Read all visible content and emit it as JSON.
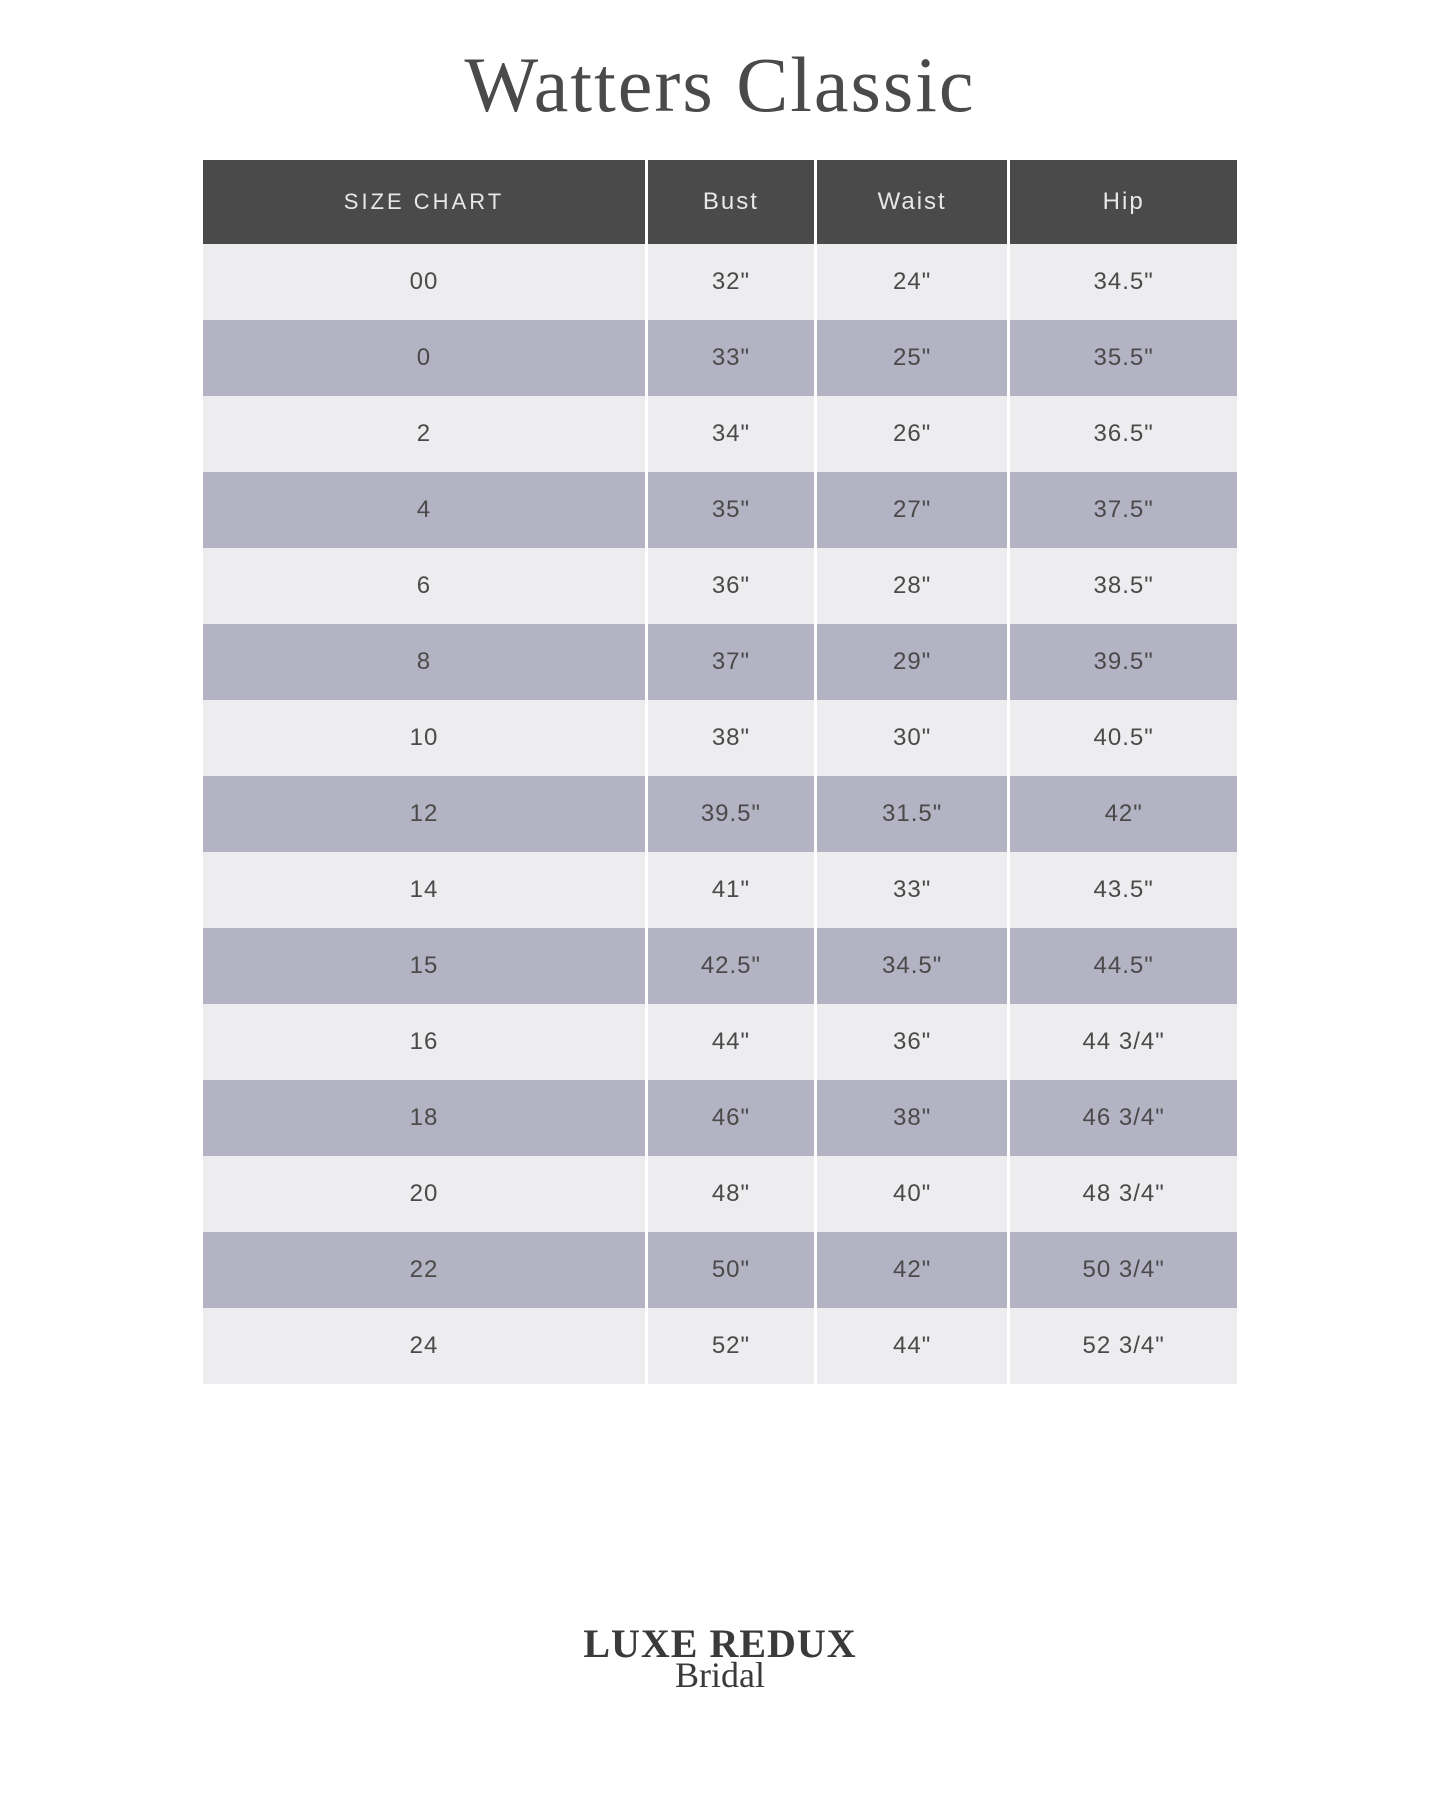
{
  "title": "Watters Classic",
  "footer": {
    "main": "LUXE REDUX",
    "sub": "Bridal"
  },
  "table": {
    "type": "table",
    "columns": [
      "SIZE CHART",
      "Bust",
      "Waist",
      "Hip"
    ],
    "header_bg": "#4a4a4a",
    "header_text_color": "#e8e8e8",
    "row_light_bg": "#ededf0",
    "row_dark_bg": "#b4b3c4",
    "cell_text_color": "#4a4a4a",
    "cell_fontsize": 24,
    "header_fontsize": 24,
    "rows": [
      [
        "00",
        "32\"",
        "24\"",
        "34.5\""
      ],
      [
        "0",
        "33\"",
        "25\"",
        "35.5\""
      ],
      [
        "2",
        "34\"",
        "26\"",
        "36.5\""
      ],
      [
        "4",
        "35\"",
        "27\"",
        "37.5\""
      ],
      [
        "6",
        "36\"",
        "28\"",
        "38.5\""
      ],
      [
        "8",
        "37\"",
        "29\"",
        "39.5\""
      ],
      [
        "10",
        "38\"",
        "30\"",
        "40.5\""
      ],
      [
        "12",
        "39.5\"",
        "31.5\"",
        "42\""
      ],
      [
        "14",
        "41\"",
        "33\"",
        "43.5\""
      ],
      [
        "15",
        "42.5\"",
        "34.5\"",
        "44.5\""
      ],
      [
        "16",
        "44\"",
        "36\"",
        "44 3/4\""
      ],
      [
        "18",
        "46\"",
        "38\"",
        "46 3/4\""
      ],
      [
        "20",
        "48\"",
        "40\"",
        "48 3/4\""
      ],
      [
        "22",
        "50\"",
        "42\"",
        "50 3/4\""
      ],
      [
        "24",
        "52\"",
        "44\"",
        "52 3/4\""
      ]
    ]
  }
}
